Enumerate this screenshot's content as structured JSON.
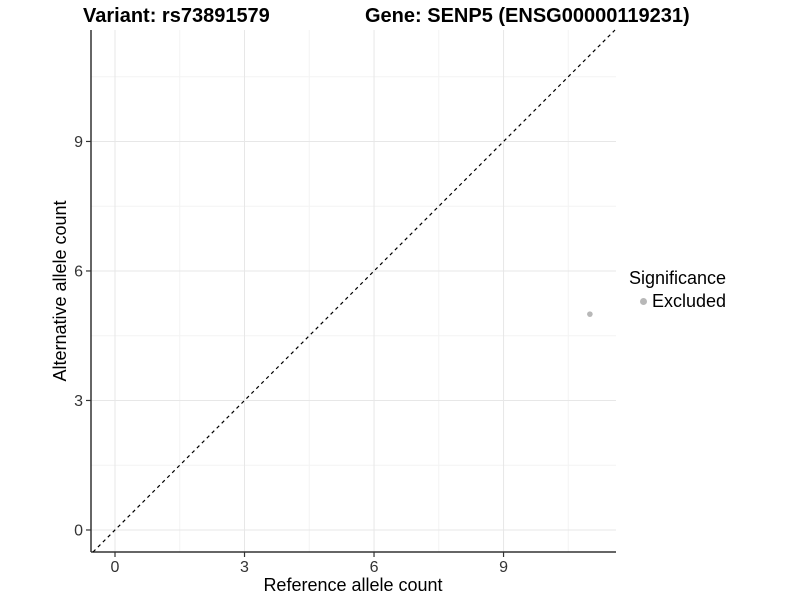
{
  "figure": {
    "title_left": "Variant: rs73891579",
    "title_right": "Gene: SENP5 (ENSG00000119231)"
  },
  "chart_data": {
    "type": "scatter",
    "title": "Variant: rs73891579    Gene: SENP5 (ENSG00000119231)",
    "xlabel": "Reference allele count",
    "ylabel": "Alternative allele count",
    "x_ticks": [
      0,
      3,
      6,
      9
    ],
    "y_ticks": [
      0,
      3,
      6,
      9
    ],
    "x_minor_ticks": [
      1.5,
      4.5,
      7.5,
      10.5
    ],
    "y_minor_ticks": [
      1.5,
      4.5,
      7.5,
      10.5
    ],
    "xlim": [
      -0.556,
      11.605
    ],
    "ylim": [
      -0.51,
      11.582
    ],
    "grid": "major and minor, light gray on white",
    "legend_position": "right",
    "identity_line": {
      "style": "dashed",
      "slope": 1,
      "intercept": 0
    },
    "series": [
      {
        "name": "Excluded",
        "color": "#b8b8b8",
        "points": [
          {
            "x": 11,
            "y": 5
          }
        ]
      }
    ],
    "colors": {
      "grid_major": "#e7e7e7",
      "grid_minor": "#f3f3f3",
      "axis": "#333333",
      "tick_label": "#333333",
      "identity_line": "#000000"
    }
  },
  "legend": {
    "title": "Significance",
    "items": [
      {
        "label": "Excluded",
        "color": "#b8b8b8"
      }
    ]
  }
}
